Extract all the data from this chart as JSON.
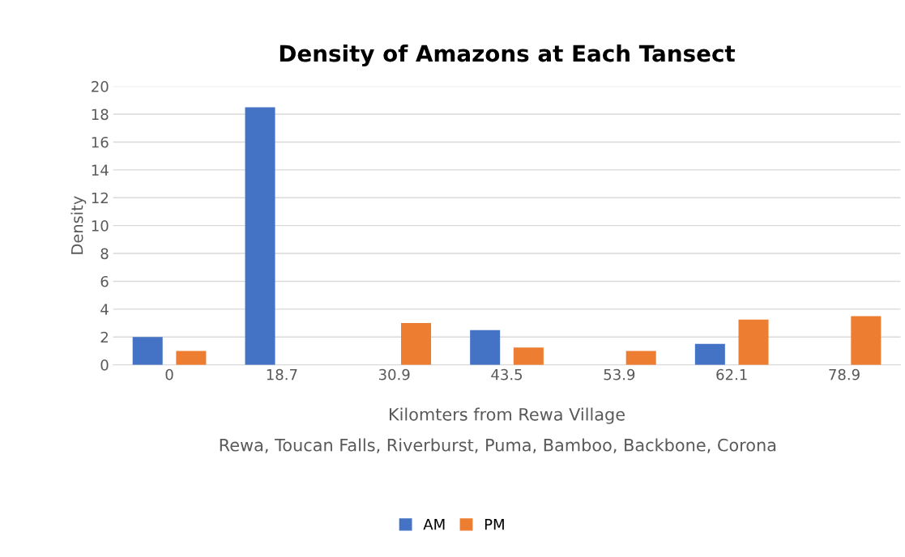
{
  "chart_data": {
    "type": "bar",
    "title": "Density of Amazons at Each Tansect",
    "xlabel": "Kilomters from Rewa Village",
    "ylabel": "Density",
    "annotations": [
      "Rewa, Toucan Falls, Riverburst, Puma, Bamboo, Backbone, Corona"
    ],
    "categories": [
      "0",
      "18.7",
      "30.9",
      "43.5",
      "53.9",
      "62.1",
      "78.9"
    ],
    "series": [
      {
        "name": "AM",
        "color": "#4472c4",
        "values": [
          2,
          18.5,
          0,
          2.5,
          0,
          1.5,
          0
        ]
      },
      {
        "name": "PM",
        "color": "#ed7d31",
        "values": [
          1,
          0,
          3,
          1.25,
          1,
          3.25,
          3.5
        ]
      }
    ],
    "ylim": [
      0,
      20
    ],
    "yticks": [
      0,
      2,
      4,
      6,
      8,
      10,
      12,
      14,
      16,
      18,
      20
    ],
    "grid": "y",
    "legend": "bottom"
  }
}
